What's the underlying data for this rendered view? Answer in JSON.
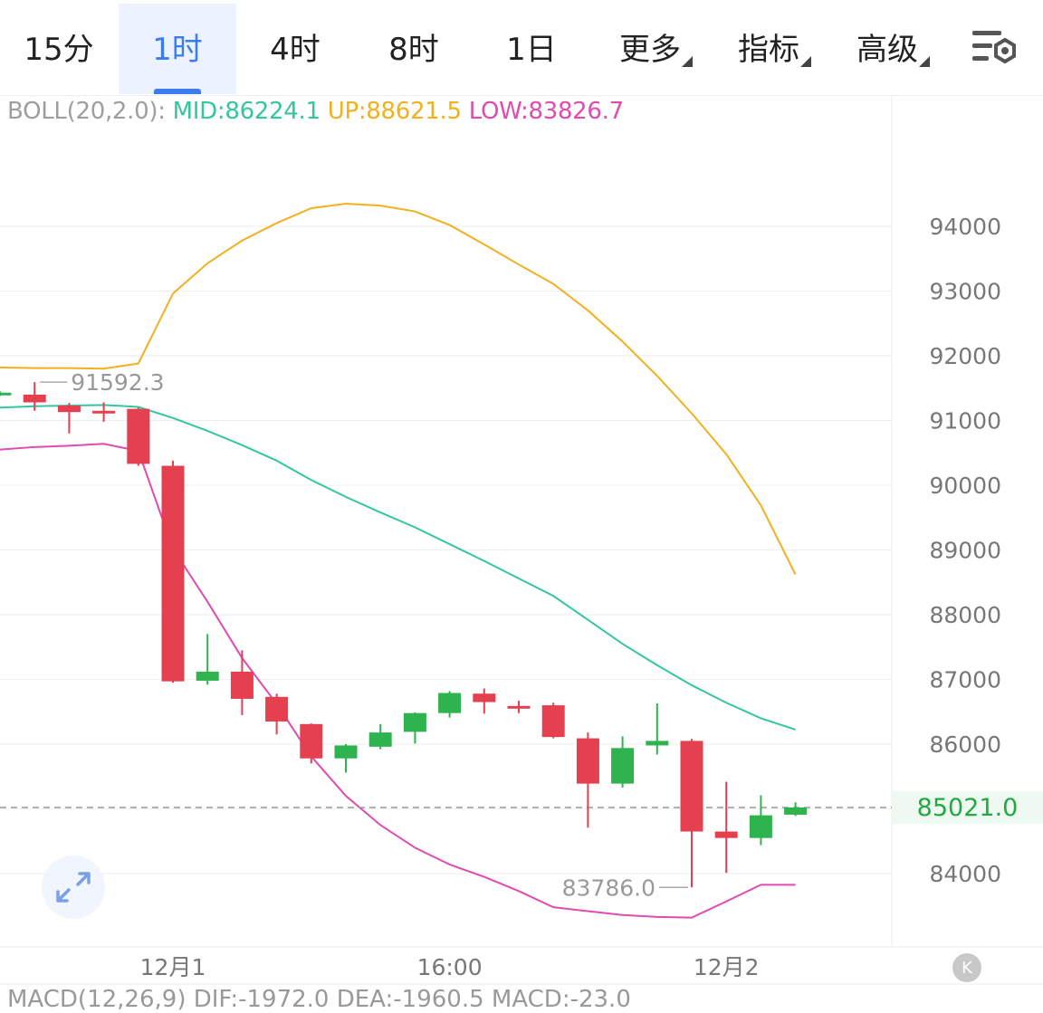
{
  "tabs": [
    {
      "label": "15分",
      "active": false,
      "dropdown": false
    },
    {
      "label": "1时",
      "active": true,
      "dropdown": false
    },
    {
      "label": "4时",
      "active": false,
      "dropdown": false
    },
    {
      "label": "8时",
      "active": false,
      "dropdown": false
    },
    {
      "label": "1日",
      "active": false,
      "dropdown": false
    },
    {
      "label": "更多",
      "active": false,
      "dropdown": true
    },
    {
      "label": "指标",
      "active": false,
      "dropdown": true
    },
    {
      "label": "高级",
      "active": false,
      "dropdown": true
    }
  ],
  "settings_icon": "chart-settings-icon",
  "boll": {
    "label": "BOLL(20,2.0):",
    "mid_text": "MID:86224.1",
    "up_text": "UP:88621.5",
    "low_text": "LOW:83826.7",
    "colors": {
      "label": "#9e9e9e",
      "mid": "#33c6a0",
      "up": "#f2b01e",
      "low": "#e04bb0"
    }
  },
  "current_price": "85021.0",
  "expand_icon": "expand-arrows-icon",
  "k_icon": "K",
  "macd_legend": "MACD(12,26,9) DIF:-1972.0 DEA:-1960.5 MACD:-23.0",
  "colors": {
    "up": "#2fb34f",
    "down": "#e5404f",
    "grid": "#eeeeee",
    "axis_text": "#777777",
    "accent": "#3d7bf0"
  },
  "chart_data": {
    "type": "candlestick",
    "title": "",
    "y_ticks": [
      "84000",
      "85000",
      "86000",
      "87000",
      "88000",
      "89000",
      "90000",
      "91000",
      "92000",
      "93000",
      "94000"
    ],
    "y_tick_labels": [
      "84000",
      "",
      "86000",
      "87000",
      "88000",
      "89000",
      "90000",
      "91000",
      "92000",
      "93000",
      "94000"
    ],
    "ylim": [
      83000,
      95500
    ],
    "x_labels": [
      {
        "index": 5,
        "text": "12月1"
      },
      {
        "index": 13,
        "text": "16:00"
      },
      {
        "index": 21,
        "text": "12月2"
      }
    ],
    "candles": [
      {
        "o": 91400,
        "h": 91450,
        "l": 91380,
        "c": 91430
      },
      {
        "o": 91400,
        "h": 91592.3,
        "l": 91150,
        "c": 91280
      },
      {
        "o": 91230,
        "h": 91270,
        "l": 90800,
        "c": 91130
      },
      {
        "o": 91150,
        "h": 91280,
        "l": 90980,
        "c": 91130
      },
      {
        "o": 91180,
        "h": 91200,
        "l": 90300,
        "c": 90330
      },
      {
        "o": 90300,
        "h": 90380,
        "l": 86950,
        "c": 86970
      },
      {
        "o": 86980,
        "h": 87700,
        "l": 86920,
        "c": 87120
      },
      {
        "o": 87120,
        "h": 87450,
        "l": 86450,
        "c": 86700
      },
      {
        "o": 86730,
        "h": 86780,
        "l": 86150,
        "c": 86350
      },
      {
        "o": 86310,
        "h": 86320,
        "l": 85700,
        "c": 85780
      },
      {
        "o": 85780,
        "h": 86000,
        "l": 85560,
        "c": 85980
      },
      {
        "o": 85960,
        "h": 86310,
        "l": 85920,
        "c": 86180
      },
      {
        "o": 86190,
        "h": 86490,
        "l": 86010,
        "c": 86480
      },
      {
        "o": 86480,
        "h": 86820,
        "l": 86410,
        "c": 86790
      },
      {
        "o": 86780,
        "h": 86860,
        "l": 86470,
        "c": 86650
      },
      {
        "o": 86590,
        "h": 86670,
        "l": 86480,
        "c": 86550
      },
      {
        "o": 86600,
        "h": 86640,
        "l": 86090,
        "c": 86110
      },
      {
        "o": 86090,
        "h": 86180,
        "l": 84710,
        "c": 85390
      },
      {
        "o": 85390,
        "h": 86120,
        "l": 85330,
        "c": 85940
      },
      {
        "o": 85980,
        "h": 86630,
        "l": 85840,
        "c": 86050
      },
      {
        "o": 86050,
        "h": 86080,
        "l": 83786.0,
        "c": 84650
      },
      {
        "o": 84650,
        "h": 85420,
        "l": 84010,
        "c": 84550
      },
      {
        "o": 84550,
        "h": 85210,
        "l": 84440,
        "c": 84900
      },
      {
        "o": 84910,
        "h": 85100,
        "l": 84890,
        "c": 85021.0
      }
    ],
    "boll_up": [
      91820,
      91810,
      91810,
      91800,
      91880,
      92960,
      93430,
      93780,
      94050,
      94280,
      94350,
      94320,
      94230,
      94020,
      93720,
      93410,
      93110,
      92700,
      92220,
      91690,
      91110,
      90480,
      89690,
      88621.5
    ],
    "boll_mid": [
      91200,
      91220,
      91230,
      91240,
      91210,
      91040,
      90840,
      90620,
      90380,
      90080,
      89820,
      89580,
      89350,
      89090,
      88830,
      88560,
      88290,
      87920,
      87550,
      87220,
      86910,
      86640,
      86400,
      86224.1
    ],
    "boll_low": [
      90550,
      90590,
      90610,
      90640,
      90530,
      89020,
      88200,
      87330,
      86620,
      85810,
      85200,
      84750,
      84400,
      84140,
      83950,
      83730,
      83480,
      83420,
      83360,
      83330,
      83320,
      83570,
      83826.7,
      83826.7
    ],
    "annotations": [
      {
        "index": 1,
        "text": "91592.3",
        "side": "right"
      },
      {
        "index": 20,
        "text": "83786.0",
        "side": "left"
      }
    ],
    "current_price_line": 85021.0
  }
}
